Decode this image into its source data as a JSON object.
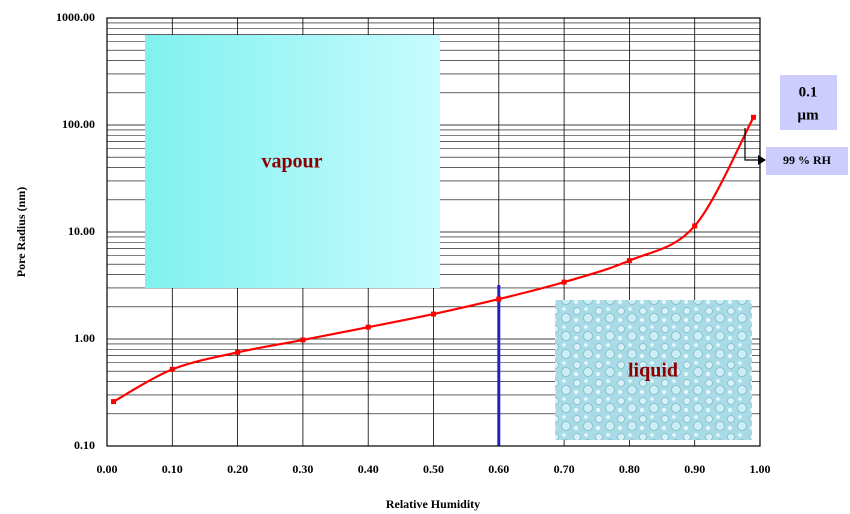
{
  "chart_data": {
    "type": "line",
    "title": null,
    "x_label": "Relative Humidity",
    "y_label": "Pore Radius (nm)",
    "x": [
      0.01,
      0.1,
      0.2,
      0.3,
      0.4,
      0.5,
      0.6,
      0.7,
      0.8,
      0.9,
      0.99
    ],
    "series": [
      {
        "name": null,
        "color": "#ff0000",
        "values": [
          0.26,
          0.52,
          0.75,
          0.98,
          1.29,
          1.71,
          2.36,
          3.4,
          5.4,
          11.4,
          118
        ]
      }
    ],
    "xlim": [
      0,
      1
    ],
    "ylim": [
      0.1,
      1000
    ],
    "log_y": true,
    "grid": true,
    "minor_grid": true,
    "xticks": [
      {
        "value": 0,
        "label": "0.00"
      },
      {
        "value": 0.1,
        "label": "0.10"
      },
      {
        "value": 0.2,
        "label": "0.20"
      },
      {
        "value": 0.3,
        "label": "0.30"
      },
      {
        "value": 0.4,
        "label": "0.40"
      },
      {
        "value": 0.5,
        "label": "0.50"
      },
      {
        "value": 0.6,
        "label": "0.60"
      },
      {
        "value": 0.7,
        "label": "0.70"
      },
      {
        "value": 0.8,
        "label": "0.80"
      },
      {
        "value": 0.9,
        "label": "0.90"
      },
      {
        "value": 1,
        "label": "1.00"
      }
    ],
    "yticks": [
      {
        "value": 0.1,
        "label": "0.10"
      },
      {
        "value": 1,
        "label": "1.00"
      },
      {
        "value": 10,
        "label": "10.00"
      },
      {
        "value": 100,
        "label": "100.00"
      },
      {
        "value": 1000,
        "label": "1000.00"
      }
    ],
    "vline": {
      "x": 0.6,
      "color": "#2222cc"
    },
    "regions": {
      "vapour": "vapour",
      "liquid": "liquid"
    },
    "callout": {
      "size_lines": [
        "0.1",
        "µm"
      ],
      "rh": "99 % RH"
    }
  }
}
